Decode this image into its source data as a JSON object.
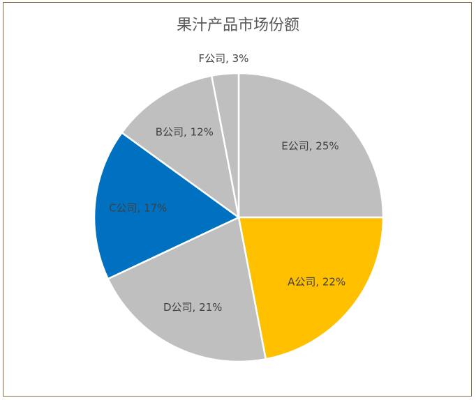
{
  "chart_data": {
    "type": "pie",
    "title": "果汁产品市场份额",
    "categories": [
      "E公司",
      "A公司",
      "D公司",
      "C公司",
      "B公司",
      "F公司"
    ],
    "values": [
      25,
      22,
      21,
      17,
      12,
      3
    ],
    "labels": [
      "E公司, 25%",
      "A公司, 22%",
      "D公司, 21%",
      "C公司, 17%",
      "B公司, 12%",
      "F公司, 3%"
    ],
    "colors": [
      "#bfbfbf",
      "#ffc000",
      "#bfbfbf",
      "#0070c0",
      "#bfbfbf",
      "#bfbfbf"
    ],
    "start_angle_deg": 0,
    "direction": "clockwise",
    "legend": "none"
  }
}
